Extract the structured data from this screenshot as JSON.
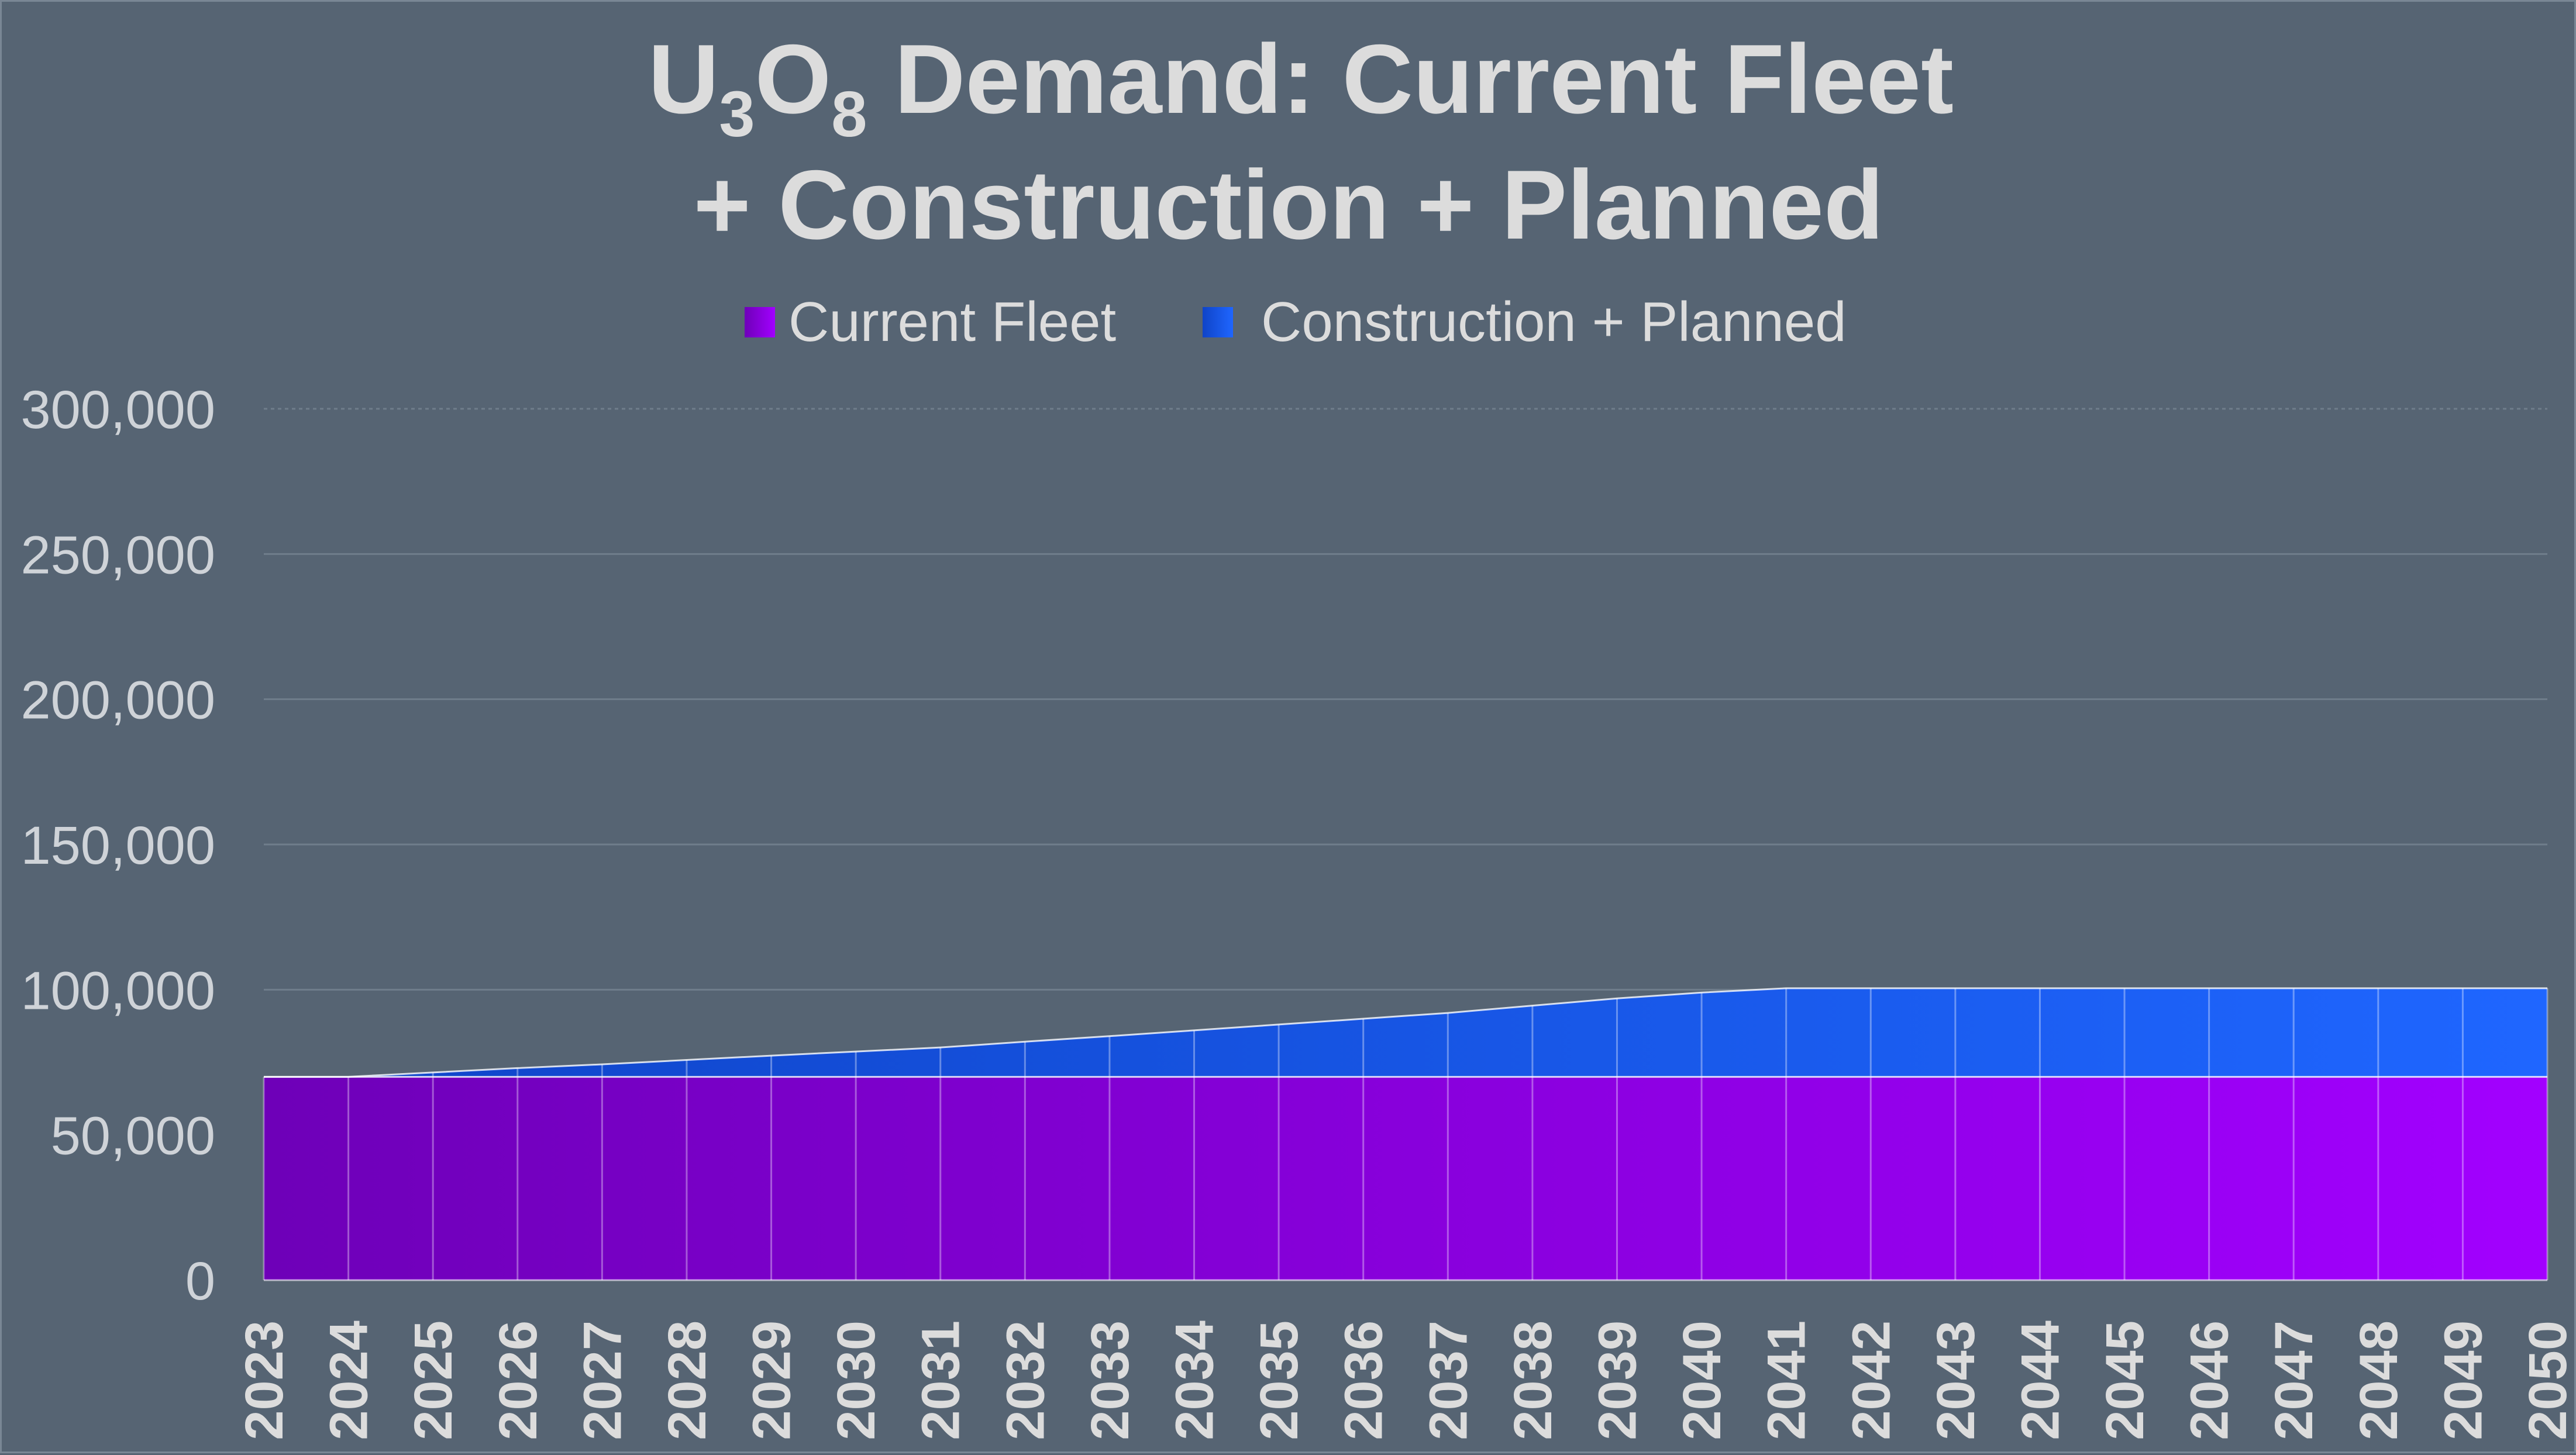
{
  "chart_data": {
    "type": "area",
    "stacked": true,
    "title_parts": {
      "u": "U",
      "sub1": "3",
      "o": "O",
      "sub2": "8",
      "rest": " Demand: Current Fleet",
      "line2": "+ Construction + Planned"
    },
    "legend_position": "top",
    "x": [
      "2023",
      "2024",
      "2025",
      "2026",
      "2027",
      "2028",
      "2029",
      "2030",
      "2031",
      "2032",
      "2033",
      "2034",
      "2035",
      "2036",
      "2037",
      "2038",
      "2039",
      "2040",
      "2041",
      "2042",
      "2043",
      "2044",
      "2045",
      "2046",
      "2047",
      "2048",
      "2049",
      "2050"
    ],
    "series": [
      {
        "name": "Current Fleet",
        "values": [
          70000,
          70000,
          70000,
          70000,
          70000,
          70000,
          70000,
          70000,
          70000,
          70000,
          70000,
          70000,
          70000,
          70000,
          70000,
          70000,
          70000,
          70000,
          70000,
          70000,
          70000,
          70000,
          70000,
          70000,
          70000,
          70000,
          70000,
          70000
        ]
      },
      {
        "name": "Construction + Planned",
        "values": [
          0,
          0,
          1500,
          3000,
          4300,
          5800,
          7300,
          8700,
          10100,
          12100,
          14000,
          16000,
          18000,
          20000,
          22000,
          24500,
          27000,
          29000,
          30500,
          30500,
          30500,
          30500,
          30500,
          30500,
          30500,
          30500,
          30500,
          30500
        ]
      }
    ],
    "ylim": [
      0,
      300000
    ],
    "yticks": [
      "0",
      "50,000",
      "100,000",
      "150,000",
      "200,000",
      "250,000",
      "300,000"
    ],
    "ytick_values": [
      0,
      50000,
      100000,
      150000,
      200000,
      250000,
      300000
    ],
    "grid": true,
    "colors": {
      "current_start": "#6e00b8",
      "current_end": "#a200ff",
      "planned_start": "#0f44c8",
      "planned_end": "#1f66ff",
      "background": "#566473",
      "text": "#dcdcdc"
    }
  }
}
